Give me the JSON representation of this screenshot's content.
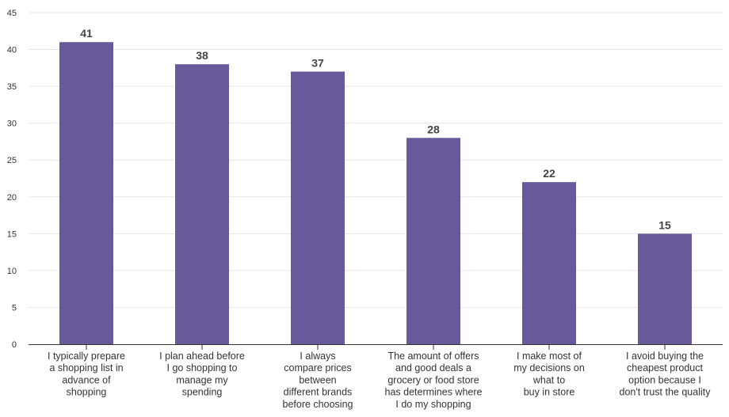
{
  "chart_data": {
    "type": "bar",
    "title": "",
    "xlabel": "",
    "ylabel": "",
    "ylim": [
      0,
      45
    ],
    "yticks": [
      0,
      5,
      10,
      15,
      20,
      25,
      30,
      35,
      40,
      45
    ],
    "grid": true,
    "legend": "none",
    "bar_color": "#67599a",
    "categories": [
      [
        "I typically prepare",
        "a shopping list in",
        "advance of",
        "shopping"
      ],
      [
        "I plan ahead before",
        "I go shopping to",
        "manage my",
        "spending"
      ],
      [
        "I always",
        "compare prices",
        "between",
        "different brands",
        "before choosing"
      ],
      [
        "The amount of offers",
        "and good deals a",
        "grocery or food store",
        "has determines where",
        "I do my shopping"
      ],
      [
        "I make most of",
        "my decisions on",
        "what to",
        "buy in store"
      ],
      [
        "I avoid buying the",
        "cheapest product",
        "option because I",
        "don't trust the quality"
      ]
    ],
    "values": [
      41,
      38,
      37,
      28,
      22,
      15
    ]
  }
}
